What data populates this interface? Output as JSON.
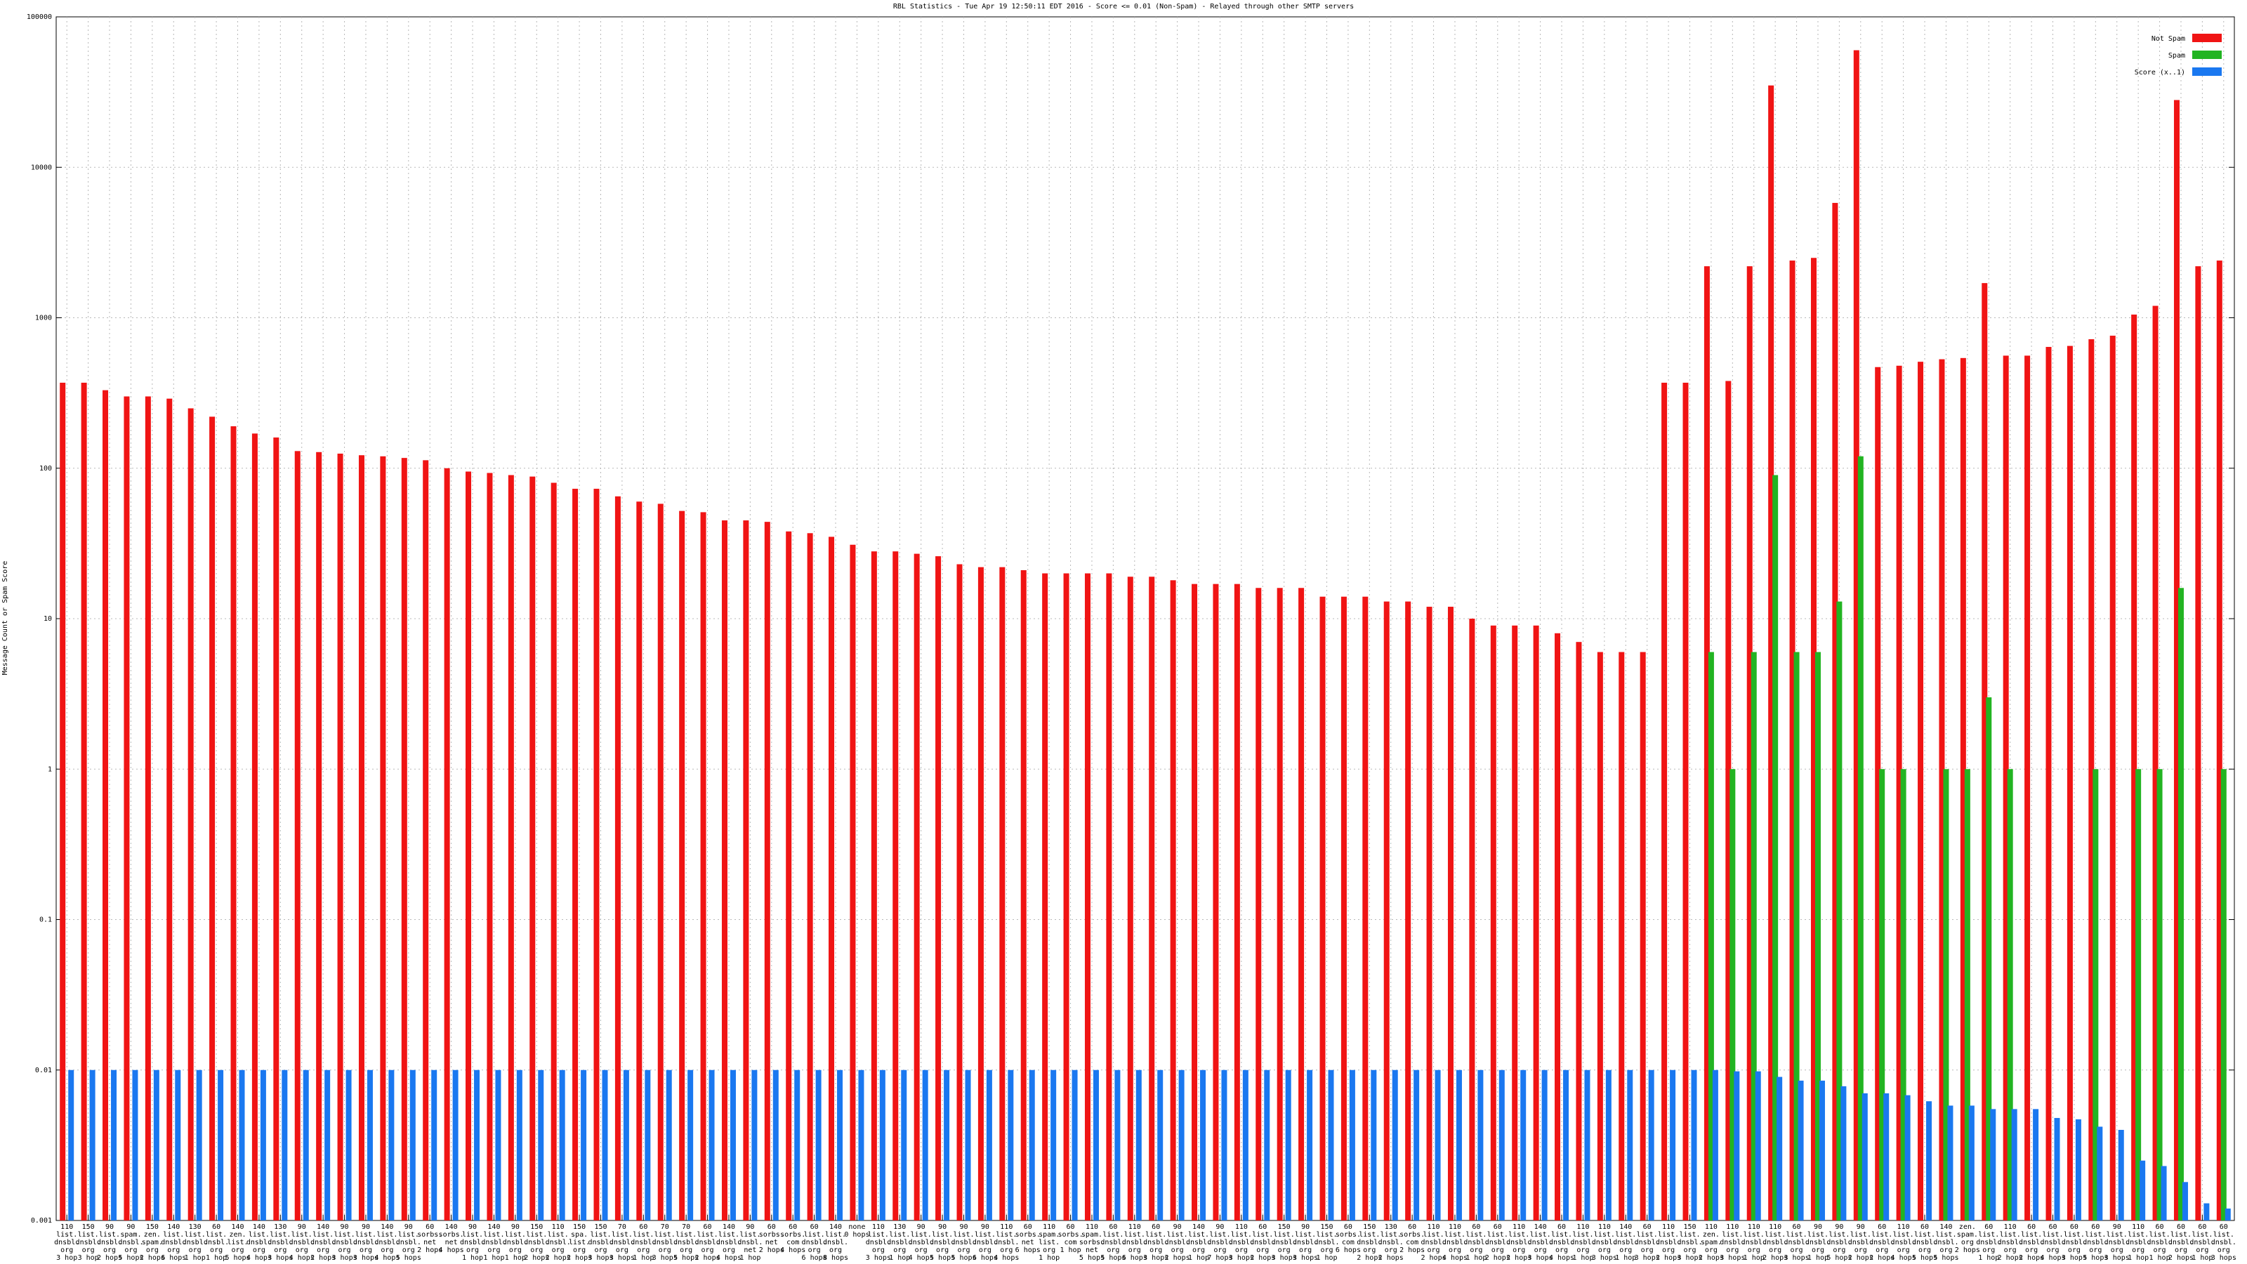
{
  "chart_data": {
    "type": "bar",
    "title": "RBL Statistics - Tue Apr 19 12:50:11 EDT 2016 - Score <= 0.01 (Non-Spam) - Relayed through other SMTP servers",
    "y_label": "Message Count or Spam Score",
    "log_y": true,
    "grid": true,
    "legend": "top-right",
    "ylim": [
      0.001,
      100000
    ],
    "yticks": [
      0.001,
      0.01,
      0.1,
      1,
      10,
      100,
      1000,
      10000,
      100000
    ],
    "categories": [
      "110\nlist.\ndnsbl.\norg\n3 hop",
      "150\nlist.\ndnsbl.\norg\n3 hop",
      "90\nlist.\ndnsbl.\norg\n2 hops",
      "90\nspam.\ndnsbl.\norg\n5 hops",
      "150\nzen.\nspam.\norg\n2 hops",
      "140\nlist.\ndnsbl.\norg\n6 hops",
      "130\nlist.\ndnsbl.\norg\n1 hop",
      "60\nlist.\ndnsbl.\norg\n1 hop",
      "140\nzen.\nlist.\norg\n5 hops",
      "140\nlist.\ndnsbl.\norg\n4 hops",
      "130\nlist.\ndnsbl.\norg\n3 hops",
      "90\nlist.\ndnsbl.\norg\n4 hops",
      "140\nlist.\ndnsbl.\norg\n2 hops",
      "90\nlist.\ndnsbl.\norg\n3 hops",
      "90\nlist.\ndnsbl.\norg\n3 hops",
      "140\nlist.\ndnsbl.\norg\n4 hops",
      "90\nlist.\ndnsbl.\norg\n5 hops",
      "60\nsorbs.\nnet\n2 hops",
      "140\nsorbs.\nnet\n4 hops",
      "90\nlist.\ndnsbl.\norg\n1 hop",
      "140\nlist.\ndnsbl.\norg\n1 hop",
      "90\nlist.\ndnsbl.\norg\n1 hop",
      "150\nlist.\ndnsbl.\norg\n2 hops",
      "110\nlist.\ndnsbl.\norg\n2 hops",
      "150\nspa.\nlist.\norg\n2 hops",
      "150\nlist.\ndnsbl.\norg\n3 hops",
      "70\nlist.\ndnsbl.\norg\n3 hops",
      "60\nlist.\ndnsbl.\norg\n1 hop",
      "70\nlist.\ndnsbl.\norg\n3 hops",
      "70\nlist.\ndnsbl.\norg\n5 hops",
      "60\nlist.\ndnsbl.\norg\n2 hops",
      "140\nlist.\ndnsbl.\norg\n4 hops",
      "90\nlist.\ndnsbl.\nnet\n1 hop",
      "60\nsorbs.\nnet\n2 hops",
      "60\nsorbs.\ncom\n4 hops",
      "60\nlist.\ndnsbl.\norg\n6 hops",
      "140\nlist.\ndnsbl.\norg\n8 hops",
      "none\n0 hops",
      "110\nlist.\ndnsbl.\norg\n3 hops",
      "130\nlist.\ndnsbl.\norg\n1 hop",
      "90\nlist.\ndnsbl.\norg\n4 hops",
      "90\nlist.\ndnsbl.\norg\n5 hops",
      "90\nlist.\ndnsbl.\norg\n5 hops",
      "90\nlist.\ndnsbl.\norg\n6 hops",
      "110\nlist.\ndnsbl.\norg\n4 hops",
      "60\nsorbs.\nnet\n6 hops",
      "110\nspam.\nlist.\norg\n1 hop",
      "60\nsorbs.\ncom\n1 hop",
      "110\nspam.\nsorbs.\nnet\n5 hops",
      "60\nlist.\ndnsbl.\norg\n5 hops",
      "110\nlist.\ndnsbl.\norg\n6 hops",
      "60\nlist.\ndnsbl.\norg\n3 hops",
      "90\nlist.\ndnsbl.\norg\n2 hops",
      "140\nlist.\ndnsbl.\norg\n1 hop",
      "90\nlist.\ndnsbl.\norg\n7 hops",
      "110\nlist.\ndnsbl.\norg\n3 hops",
      "60\nlist.\ndnsbl.\norg\n2 hops",
      "150\nlist.\ndnsbl.\norg\n3 hops",
      "90\nlist.\ndnsbl.\norg\n3 hops",
      "150\nlist.\ndnsbl.\norg\n1 hop",
      "60\nsorbs.\ncom\n6 hops",
      "150\nlist.\ndnsbl.\norg\n2 hops",
      "130\nlist.\ndnsbl.\norg\n2 hops",
      "60\nsorbs.\ncom\n2 hops",
      "110\nlist.\ndnsbl.\norg\n2 hops",
      "110\nlist.\ndnsbl.\norg\n4 hops",
      "60\nlist.\ndnsbl.\norg\n1 hop",
      "60\nlist.\ndnsbl.\norg\n2 hops",
      "110\nlist.\ndnsbl.\norg\n2 hops",
      "140\nlist.\ndnsbl.\norg\n3 hops",
      "60\nlist.\ndnsbl.\norg\n4 hops",
      "110\nlist.\ndnsbl.\norg\n1 hop",
      "110\nlist.\ndnsbl.\norg\n3 hops",
      "140\nlist.\ndnsbl.\norg\n1 hop",
      "60\nlist.\ndnsbl.\norg\n3 hops",
      "110\nlist.\ndnsbl.\norg\n2 hops",
      "150\nlist.\ndnsbl.\norg\n3 hops",
      "110\nzen.\nspam.\norg\n2 hops",
      "110\nlist.\ndnsbl.\norg\n3 hops",
      "110\nlist.\ndnsbl.\norg\n1 hop",
      "110\nlist.\ndnsbl.\norg\n2 hops",
      "60\nlist.\ndnsbl.\norg\n3 hops",
      "90\nlist.\ndnsbl.\norg\n1 hop",
      "90\nlist.\ndnsbl.\norg\n5 hops",
      "90\nlist.\ndnsbl.\norg\n2 hops",
      "60\nlist.\ndnsbl.\norg\n2 hops",
      "110\nlist.\ndnsbl.\norg\n4 hops",
      "60\nlist.\ndnsbl.\norg\n5 hops",
      "140\nlist.\ndnsbl.\norg\n5 hops",
      "zen.\nspam.\norg\n2 hops",
      "60\nlist.\ndnsbl.\norg\n1 hop",
      "110\nlist.\ndnsbl.\norg\n2 hops",
      "60\nlist.\ndnsbl.\norg\n2 hops",
      "60\nlist.\ndnsbl.\norg\n4 hops",
      "60\nlist.\ndnsbl.\norg\n3 hops",
      "60\nlist.\ndnsbl.\norg\n5 hops",
      "90\nlist.\ndnsbl.\norg\n3 hops",
      "110\nlist.\ndnsbl.\norg\n1 hop",
      "60\nlist.\ndnsbl.\norg\n1 hop",
      "60\nlist.\ndnsbl.\norg\n2 hops",
      "60\nlist.\ndnsbl.\norg\n1 hop",
      "60\nlist.\ndnsbl.\norg\n3 hops"
    ],
    "series": [
      {
        "name": "Not Spam",
        "color": "#f01414",
        "values": [
          370,
          370,
          330,
          300,
          300,
          290,
          250,
          220,
          190,
          170,
          160,
          130,
          128,
          125,
          122,
          120,
          117,
          113,
          100,
          95,
          93,
          90,
          88,
          80,
          73,
          73,
          65,
          60,
          58,
          52,
          51,
          45,
          45,
          44,
          38,
          37,
          35,
          31,
          28,
          28,
          27,
          26,
          23,
          22,
          22,
          21,
          20,
          20,
          20,
          20,
          19,
          19,
          18,
          17,
          17,
          17,
          16,
          16,
          16,
          14,
          14,
          14,
          13,
          13,
          12,
          12,
          10,
          9,
          9,
          9,
          8,
          7,
          6,
          6,
          6,
          370,
          370,
          2200,
          380,
          2200,
          35000,
          2400,
          2500,
          5800,
          60000,
          470,
          480,
          510,
          530,
          540,
          1700,
          560,
          560,
          640,
          650,
          720,
          760,
          1050,
          1200,
          28000,
          2200,
          2400
        ]
      },
      {
        "name": "Spam",
        "color": "#22b422",
        "values": [
          null,
          null,
          null,
          null,
          null,
          null,
          null,
          null,
          null,
          null,
          null,
          null,
          null,
          null,
          null,
          null,
          null,
          null,
          null,
          null,
          null,
          null,
          null,
          null,
          null,
          null,
          null,
          null,
          null,
          null,
          null,
          null,
          null,
          null,
          null,
          null,
          null,
          null,
          null,
          null,
          null,
          null,
          null,
          null,
          null,
          null,
          null,
          null,
          null,
          null,
          null,
          null,
          null,
          null,
          null,
          null,
          null,
          null,
          null,
          null,
          null,
          null,
          null,
          null,
          null,
          null,
          null,
          null,
          null,
          null,
          null,
          null,
          null,
          null,
          null,
          null,
          null,
          6,
          1,
          6,
          90,
          6,
          6,
          13,
          120,
          1,
          1,
          null,
          1,
          1,
          3,
          1,
          null,
          null,
          null,
          1,
          null,
          1,
          1,
          16,
          null,
          1
        ]
      },
      {
        "name": "Score (x..1)",
        "color": "#1a78f0",
        "values": [
          0.01,
          0.01,
          0.01,
          0.01,
          0.01,
          0.01,
          0.01,
          0.01,
          0.01,
          0.01,
          0.01,
          0.01,
          0.01,
          0.01,
          0.01,
          0.01,
          0.01,
          0.01,
          0.01,
          0.01,
          0.01,
          0.01,
          0.01,
          0.01,
          0.01,
          0.01,
          0.01,
          0.01,
          0.01,
          0.01,
          0.01,
          0.01,
          0.01,
          0.01,
          0.01,
          0.01,
          0.01,
          0.01,
          0.01,
          0.01,
          0.01,
          0.01,
          0.01,
          0.01,
          0.01,
          0.01,
          0.01,
          0.01,
          0.01,
          0.01,
          0.01,
          0.01,
          0.01,
          0.01,
          0.01,
          0.01,
          0.01,
          0.01,
          0.01,
          0.01,
          0.01,
          0.01,
          0.01,
          0.01,
          0.01,
          0.01,
          0.01,
          0.01,
          0.01,
          0.01,
          0.01,
          0.01,
          0.01,
          0.01,
          0.01,
          0.01,
          0.01,
          0.01,
          0.0098,
          0.0098,
          0.009,
          0.0085,
          0.0085,
          0.0078,
          0.007,
          0.007,
          0.0068,
          0.0062,
          0.0058,
          0.0058,
          0.0055,
          0.0055,
          0.0055,
          0.0048,
          0.0047,
          0.0042,
          0.004,
          0.0025,
          0.0023,
          0.0018,
          0.0013,
          0.0012
        ]
      }
    ]
  }
}
